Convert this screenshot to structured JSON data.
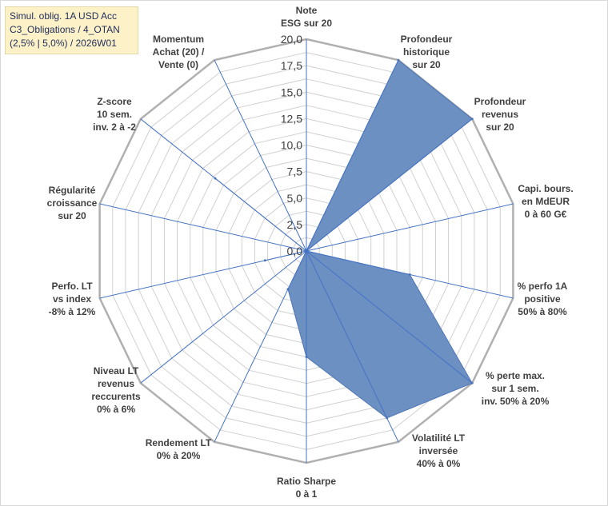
{
  "title_lines": [
    "Simul. oblig. 1A USD Acc",
    "C3_Obligations / 4_OTAN",
    "(2,5% | 5,0%) / 2026W01"
  ],
  "colors": {
    "fill": "#6d90c3",
    "stroke": "#4f77b5",
    "grid": "#d0d0d0",
    "outer": "#b0b0b0",
    "spoke": "#4472c4"
  },
  "chart_data": {
    "type": "radar",
    "rmax": 20,
    "grid_step": 1.25,
    "tick_values": [
      0,
      2.5,
      5,
      7.5,
      10,
      12.5,
      15,
      17.5,
      20
    ],
    "tick_labels": [
      "0,0",
      "2,5",
      "5,0",
      "7,5",
      "10,0",
      "12,5",
      "15,0",
      "17,5",
      "20,0"
    ],
    "axes": [
      [
        "Note",
        "ESG sur 20"
      ],
      [
        "Profondeur",
        "historique",
        "sur 20"
      ],
      [
        "Profondeur",
        "revenus",
        "sur 20"
      ],
      [
        "Capi. bours.",
        "en MdEUR",
        "0 à 60 G€"
      ],
      [
        "% perfo 1A",
        "positive",
        "50% à 80%"
      ],
      [
        "% perte max.",
        "sur 1 sem.",
        "inv. 50% à 20%"
      ],
      [
        "Volatilité LT",
        "inversée",
        "40% à 0%"
      ],
      [
        "Ratio Sharpe",
        "0 à 1"
      ],
      [
        "Rendement LT",
        "0% à 20%"
      ],
      [
        "Niveau LT",
        "revenus",
        "reccurents",
        "0% à 6%"
      ],
      [
        "Perfo. LT",
        "vs index",
        "-8% à 12%"
      ],
      [
        "Régularité",
        "croissance",
        "sur 20"
      ],
      [
        "Z-score",
        "10 sem.",
        "inv. 2 à -2"
      ],
      [
        "Momentum",
        "Achat (20) /",
        "Vente (0)"
      ]
    ],
    "values": [
      0,
      20,
      20,
      0,
      10,
      20,
      17.5,
      10,
      4,
      0,
      4,
      0,
      11,
      0
    ]
  }
}
